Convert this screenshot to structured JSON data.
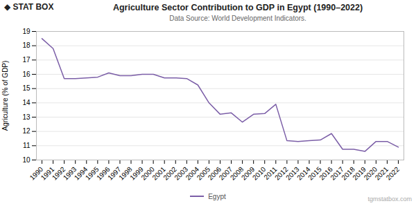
{
  "chart_data": {
    "type": "line",
    "title": "Agriculture Sector Contribution to GDP in Egypt (1990–2022)",
    "subtitle": "Data Source: World Development Indicators.",
    "ylabel": "Agriculture (% of GDP)",
    "x": [
      1990,
      1991,
      1992,
      1993,
      1994,
      1995,
      1996,
      1997,
      1998,
      1999,
      2000,
      2001,
      2002,
      2003,
      2004,
      2005,
      2006,
      2007,
      2008,
      2009,
      2010,
      2011,
      2012,
      2013,
      2014,
      2015,
      2016,
      2017,
      2018,
      2019,
      2020,
      2021,
      2022
    ],
    "series": [
      {
        "name": "Egypt",
        "color": "#7B5EA7",
        "values": [
          18.5,
          17.8,
          15.7,
          15.7,
          15.75,
          15.8,
          16.1,
          15.9,
          15.9,
          16.0,
          16.0,
          15.75,
          15.75,
          15.7,
          15.25,
          14.0,
          13.2,
          13.3,
          12.65,
          13.2,
          13.25,
          13.9,
          11.35,
          11.3,
          11.35,
          11.4,
          11.85,
          10.75,
          10.75,
          10.6,
          11.3,
          11.3,
          10.9
        ]
      }
    ],
    "xlim": [
      1989.5,
      2022.5
    ],
    "xticks": [
      1990,
      1991,
      1992,
      1993,
      1994,
      1995,
      1996,
      1997,
      1998,
      1999,
      2000,
      2001,
      2002,
      2003,
      2004,
      2005,
      2006,
      2007,
      2008,
      2009,
      2010,
      2011,
      2012,
      2013,
      2014,
      2015,
      2016,
      2017,
      2018,
      2019,
      2020,
      2021,
      2022
    ],
    "ylim": [
      10,
      19
    ],
    "yticks": [
      10,
      11,
      12,
      13,
      14,
      15,
      16,
      17,
      18,
      19
    ],
    "grid": "y",
    "legend": "bottom",
    "annotations": [
      "◆ STAT",
      "BOX",
      "tgmstatbox.com"
    ]
  }
}
